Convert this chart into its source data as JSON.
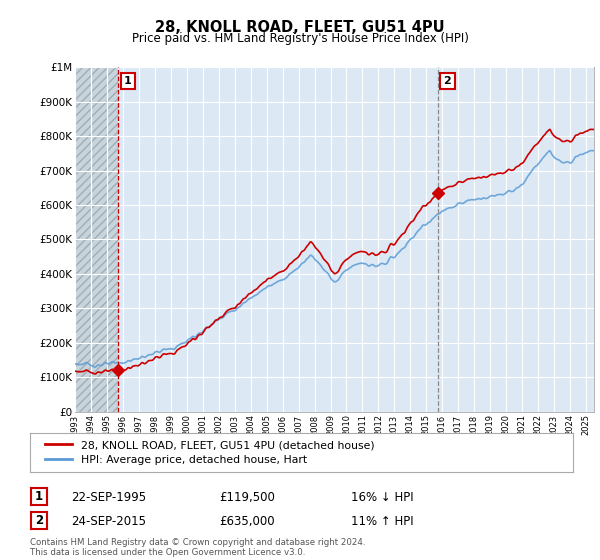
{
  "title": "28, KNOLL ROAD, FLEET, GU51 4PU",
  "subtitle": "Price paid vs. HM Land Registry's House Price Index (HPI)",
  "ytick_values": [
    0,
    100000,
    200000,
    300000,
    400000,
    500000,
    600000,
    700000,
    800000,
    900000,
    1000000
  ],
  "ylim": [
    0,
    1000000
  ],
  "xlim_start": 1993.0,
  "xlim_end": 2025.5,
  "xtick_years": [
    1993,
    1994,
    1995,
    1996,
    1997,
    1998,
    1999,
    2000,
    2001,
    2002,
    2003,
    2004,
    2005,
    2006,
    2007,
    2008,
    2009,
    2010,
    2011,
    2012,
    2013,
    2014,
    2015,
    2016,
    2017,
    2018,
    2019,
    2020,
    2021,
    2022,
    2023,
    2024,
    2025
  ],
  "hpi_color": "#5b9bd5",
  "price_color": "#cc0000",
  "sale1_x": 1995.72,
  "sale1_y": 119500,
  "sale2_x": 2015.72,
  "sale2_y": 635000,
  "sale1_date": "22-SEP-1995",
  "sale1_price": "£119,500",
  "sale1_hpi": "16% ↓ HPI",
  "sale2_date": "24-SEP-2015",
  "sale2_price": "£635,000",
  "sale2_hpi": "11% ↑ HPI",
  "legend_label_price": "28, KNOLL ROAD, FLEET, GU51 4PU (detached house)",
  "legend_label_hpi": "HPI: Average price, detached house, Hart",
  "footer": "Contains HM Land Registry data © Crown copyright and database right 2024.\nThis data is licensed under the Open Government Licence v3.0.",
  "background_color": "#ffffff",
  "plot_bg_color": "#dce9f5",
  "grid_color": "#ffffff",
  "label_box_color": "#cc0000",
  "hatch_color": "#b0bec8",
  "hatch_end_x": 1995.72
}
